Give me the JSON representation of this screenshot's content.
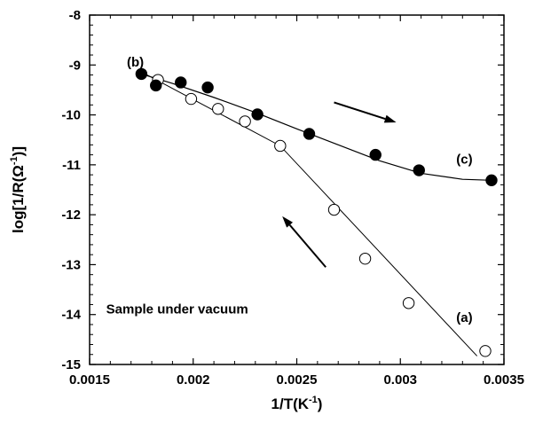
{
  "chart_data": {
    "type": "scatter",
    "title": "",
    "xlabel": {
      "main": "1/T(K",
      "sup": "-1",
      "close": ")"
    },
    "ylabel": {
      "main": "log[1/R(Ω",
      "sup": "-1",
      "close": ")]"
    },
    "xlim": [
      0.0015,
      0.0035
    ],
    "ylim": [
      -15,
      -8
    ],
    "xticks": [
      0.0015,
      0.002,
      0.0025,
      0.003,
      0.0035
    ],
    "xtick_labels": [
      "0.0015",
      "0.002",
      "0.0025",
      "0.003",
      "0.0035"
    ],
    "yticks": [
      -15,
      -14,
      -13,
      -12,
      -11,
      -10,
      -9,
      -8
    ],
    "ytick_labels": [
      "-15",
      "-14",
      "-13",
      "-12",
      "-11",
      "-10",
      "-9",
      "-8"
    ],
    "grid": false,
    "series": [
      {
        "marker": "open-circle",
        "x": [
          0.00183,
          0.00199,
          0.00212,
          0.00225,
          0.00242,
          0.00268,
          0.00283,
          0.00304,
          0.00341
        ],
        "y": [
          -9.3,
          -9.68,
          -9.88,
          -10.13,
          -10.62,
          -11.9,
          -12.88,
          -13.77,
          -14.73
        ],
        "fit_line": {
          "x": [
            0.00176,
            0.00242,
            0.00337
          ],
          "y": [
            -9.16,
            -10.62,
            -14.83
          ]
        }
      },
      {
        "marker": "filled-circle",
        "x": [
          0.00175,
          0.00182,
          0.00194,
          0.00207,
          0.00231,
          0.00256,
          0.00288,
          0.00309,
          0.00344
        ],
        "y": [
          -9.18,
          -9.41,
          -9.35,
          -9.45,
          -9.99,
          -10.38,
          -10.8,
          -11.11,
          -11.31
        ],
        "fit_curve": {
          "x": [
            0.00175,
            0.0019,
            0.0021,
            0.0023,
            0.0025,
            0.0027,
            0.0029,
            0.0031,
            0.0033,
            0.00344
          ],
          "y": [
            -9.18,
            -9.37,
            -9.65,
            -9.95,
            -10.28,
            -10.6,
            -10.92,
            -11.17,
            -11.29,
            -11.31
          ]
        }
      }
    ],
    "annotations": [
      {
        "text": "(b)",
        "x": 0.00168,
        "y": -9.03
      },
      {
        "text": "(c)",
        "x": 0.00327,
        "y": -10.98
      },
      {
        "text": "(a)",
        "x": 0.00327,
        "y": -14.15
      },
      {
        "text": "Sample under vacuum",
        "x": 0.00158,
        "y": -13.98
      }
    ],
    "arrows": [
      {
        "from": [
          0.00268,
          -9.75
        ],
        "to": [
          0.00298,
          -10.15
        ]
      },
      {
        "from": [
          0.00264,
          -13.05
        ],
        "to": [
          0.00243,
          -12.03
        ]
      }
    ]
  }
}
